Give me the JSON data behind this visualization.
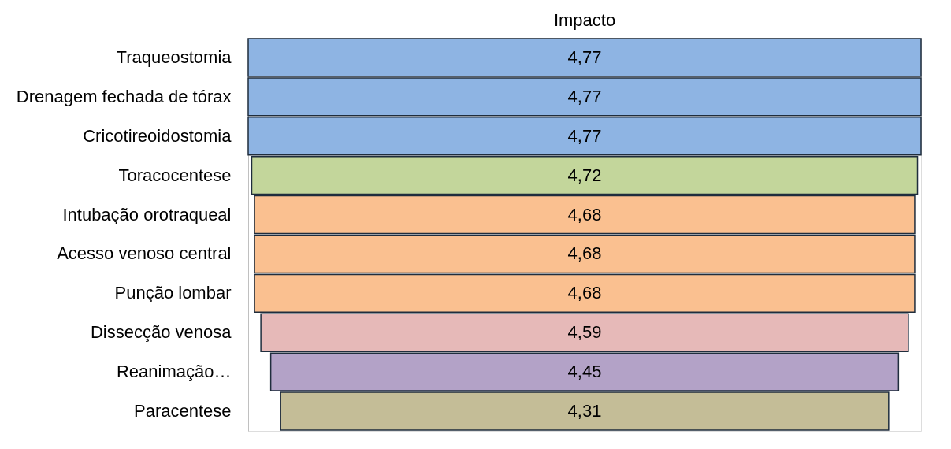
{
  "chart_data": {
    "type": "other",
    "title": "Impacto",
    "categories": [
      "Traqueostomia",
      "Drenagem fechada de tórax",
      "Cricotireoidostomia",
      "Toracocentese",
      "Intubação orotraqueal",
      "Acesso venoso central",
      "Punção lombar",
      "Dissecção venosa",
      "Reanimação…",
      "Paracentese"
    ],
    "values": [
      4.77,
      4.77,
      4.77,
      4.72,
      4.68,
      4.68,
      4.68,
      4.59,
      4.45,
      4.31
    ],
    "value_labels": [
      "4,77",
      "4,77",
      "4,77",
      "4,72",
      "4,68",
      "4,68",
      "4,68",
      "4,59",
      "4,45",
      "4,31"
    ],
    "colors": [
      "#8eb4e3",
      "#8eb4e3",
      "#8eb4e3",
      "#c3d69b",
      "#fac090",
      "#fac090",
      "#fac090",
      "#e6b9b8",
      "#b3a2c7",
      "#c4bd97"
    ]
  }
}
